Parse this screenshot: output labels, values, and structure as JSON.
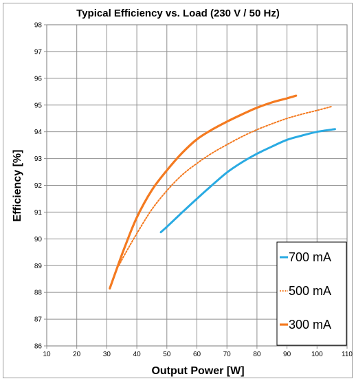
{
  "chart_data": {
    "type": "line",
    "title": "Typical Efficiency vs. Load (230 V / 50 Hz)",
    "xlabel": "Output Power [W]",
    "ylabel": "Efficiency [%]",
    "xlim": [
      10,
      110
    ],
    "ylim": [
      86,
      98
    ],
    "x_ticks": [
      "10",
      "20",
      "30",
      "40",
      "50",
      "60",
      "70",
      "80",
      "90",
      "100",
      "110"
    ],
    "y_ticks": [
      "86",
      "87",
      "88",
      "89",
      "90",
      "91",
      "92",
      "93",
      "94",
      "95",
      "96",
      "97",
      "98"
    ],
    "grid": true,
    "legend_position": "bottom-right",
    "series": [
      {
        "name": "700 mA",
        "color": "#29aae2",
        "line_style": "solid",
        "x": [
          48,
          50,
          55,
          60,
          65,
          70,
          75,
          80,
          85,
          90,
          95,
          100,
          106
        ],
        "y": [
          90.25,
          90.45,
          90.98,
          91.5,
          92.0,
          92.48,
          92.86,
          93.18,
          93.45,
          93.7,
          93.86,
          94.0,
          94.1
        ]
      },
      {
        "name": "500 mA",
        "color": "#f47a20",
        "line_style": "dotted",
        "x": [
          34,
          36,
          40,
          45,
          50,
          55,
          60,
          65,
          70,
          75,
          80,
          85,
          90,
          95,
          100,
          105
        ],
        "y": [
          89.0,
          89.42,
          90.2,
          91.1,
          91.8,
          92.38,
          92.82,
          93.2,
          93.52,
          93.82,
          94.08,
          94.3,
          94.5,
          94.66,
          94.8,
          94.95
        ]
      },
      {
        "name": "300 mA",
        "color": "#f47a20",
        "line_style": "solid",
        "x": [
          31,
          33,
          36,
          40,
          45,
          50,
          55,
          60,
          65,
          70,
          75,
          80,
          85,
          90,
          93
        ],
        "y": [
          88.15,
          88.78,
          89.7,
          90.8,
          91.82,
          92.56,
          93.2,
          93.72,
          94.08,
          94.38,
          94.65,
          94.9,
          95.1,
          95.25,
          95.35
        ]
      }
    ]
  }
}
